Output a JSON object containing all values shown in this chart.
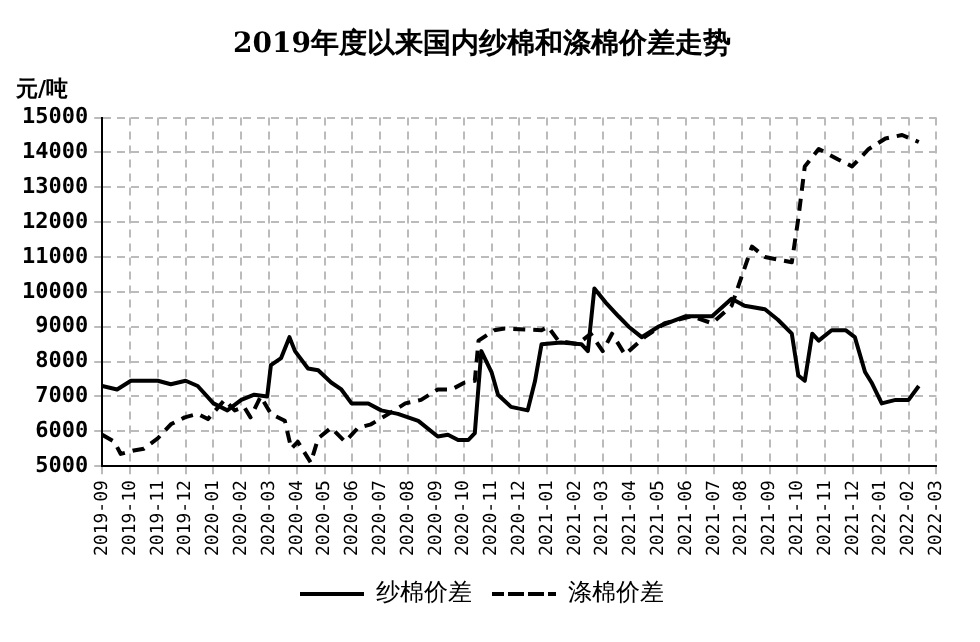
{
  "chart_data": {
    "type": "line",
    "title": "2019年度以来国内纱棉和涤棉价差走势",
    "ylabel": "元/吨",
    "xlim": [
      "2019-09",
      "2022-03"
    ],
    "xticks": [
      "2019-09",
      "2019-10",
      "2019-11",
      "2019-12",
      "2020-01",
      "2020-02",
      "2020-03",
      "2020-04",
      "2020-05",
      "2020-06",
      "2020-07",
      "2020-08",
      "2020-09",
      "2020-10",
      "2020-11",
      "2020-12",
      "2021-01",
      "2021-02",
      "2021-03",
      "2021-04",
      "2021-05",
      "2021-06",
      "2021-07",
      "2021-08",
      "2021-09",
      "2021-10",
      "2021-11",
      "2021-12",
      "2022-01",
      "2022-02",
      "2022-03"
    ],
    "ylim": [
      5000,
      15000
    ],
    "yticks": [
      5000,
      6000,
      7000,
      8000,
      9000,
      10000,
      11000,
      12000,
      13000,
      14000,
      15000
    ],
    "grid": true,
    "legend": "bottom",
    "marker": "none",
    "series": [
      {
        "name": "纱棉价差",
        "color": "#000000",
        "line_style": "solid",
        "x": [
          "2019-09-01",
          "2019-09-17",
          "2019-10-02",
          "2019-11-01",
          "2019-11-15",
          "2019-12-01",
          "2019-12-14",
          "2020-01-01",
          "2020-01-16",
          "2020-02-01",
          "2020-02-15",
          "2020-02-29",
          "2020-03-03",
          "2020-03-14",
          "2020-03-23",
          "2020-03-29",
          "2020-04-13",
          "2020-04-24",
          "2020-05-08",
          "2020-05-19",
          "2020-05-30",
          "2020-06-18",
          "2020-07-02",
          "2020-07-20",
          "2020-08-12",
          "2020-09-03",
          "2020-09-14",
          "2020-09-25",
          "2020-10-06",
          "2020-10-13",
          "2020-10-20",
          "2020-11-01",
          "2020-11-08",
          "2020-11-22",
          "2020-12-10",
          "2020-12-18",
          "2020-12-25",
          "2021-01-16",
          "2021-02-08",
          "2021-02-15",
          "2021-02-22",
          "2021-03-04",
          "2021-03-18",
          "2021-03-29",
          "2021-04-13",
          "2021-05-01",
          "2021-05-30",
          "2021-06-29",
          "2021-07-20",
          "2021-08-04",
          "2021-08-26",
          "2021-09-10",
          "2021-09-25",
          "2021-10-02",
          "2021-10-09",
          "2021-10-17",
          "2021-10-24",
          "2021-11-08",
          "2021-11-23",
          "2021-12-03",
          "2021-12-14",
          "2021-12-21",
          "2022-01-02",
          "2022-01-17",
          "2022-02-01",
          "2022-02-12"
        ],
        "values": [
          7300,
          7200,
          7450,
          7450,
          7350,
          7450,
          7300,
          6800,
          6600,
          6900,
          7050,
          7000,
          7900,
          8100,
          8700,
          8300,
          7800,
          7750,
          7400,
          7200,
          6800,
          6800,
          6600,
          6500,
          6300,
          5850,
          5900,
          5750,
          5750,
          5950,
          8300,
          7700,
          7050,
          6700,
          6600,
          7450,
          8500,
          8550,
          8500,
          8300,
          10100,
          9700,
          9300,
          9000,
          8700,
          9000,
          9300,
          9300,
          9800,
          9600,
          9500,
          9200,
          8800,
          7600,
          7450,
          8800,
          8600,
          8900,
          8900,
          8700,
          7700,
          7400,
          6800,
          6900,
          6900,
          7300
        ]
      },
      {
        "name": "涤棉价差",
        "color": "#000000",
        "line_style": "dashed",
        "x": [
          "2019-09-01",
          "2019-09-14",
          "2019-09-21",
          "2019-10-05",
          "2019-10-16",
          "2019-11-01",
          "2019-11-15",
          "2019-11-30",
          "2019-12-14",
          "2019-12-25",
          "2020-01-13",
          "2020-01-24",
          "2020-02-04",
          "2020-02-11",
          "2020-02-22",
          "2020-03-03",
          "2020-03-18",
          "2020-03-25",
          "2020-04-02",
          "2020-04-16",
          "2020-04-24",
          "2020-05-08",
          "2020-05-23",
          "2020-06-07",
          "2020-06-21",
          "2020-07-10",
          "2020-07-28",
          "2020-08-15",
          "2020-09-03",
          "2020-09-18",
          "2020-10-02",
          "2020-10-13",
          "2020-10-17",
          "2020-11-04",
          "2020-11-15",
          "2020-12-25",
          "2021-01-02",
          "2021-01-13",
          "2021-02-04",
          "2021-02-18",
          "2021-03-01",
          "2021-03-11",
          "2021-03-25",
          "2021-04-16",
          "2021-05-08",
          "2021-06-07",
          "2021-06-29",
          "2021-07-20",
          "2021-08-12",
          "2021-08-26",
          "2021-09-25",
          "2021-10-02",
          "2021-10-09",
          "2021-10-24",
          "2021-11-15",
          "2021-11-30",
          "2021-12-18",
          "2022-01-06",
          "2022-01-24",
          "2022-02-12"
        ],
        "values": [
          5900,
          5700,
          5350,
          5450,
          5500,
          5800,
          6200,
          6400,
          6500,
          6350,
          6900,
          6600,
          6700,
          6400,
          7000,
          6500,
          6300,
          5500,
          5700,
          5100,
          5800,
          6100,
          5700,
          6100,
          6200,
          6500,
          6800,
          6900,
          7200,
          7200,
          7400,
          7450,
          8600,
          8900,
          8950,
          8900,
          9000,
          8600,
          8500,
          8800,
          8300,
          8800,
          8200,
          8700,
          9100,
          9300,
          9100,
          9600,
          11300,
          11000,
          10850,
          12100,
          13600,
          14100,
          13800,
          13600,
          14100,
          14400,
          14500,
          14300
        ]
      }
    ]
  }
}
